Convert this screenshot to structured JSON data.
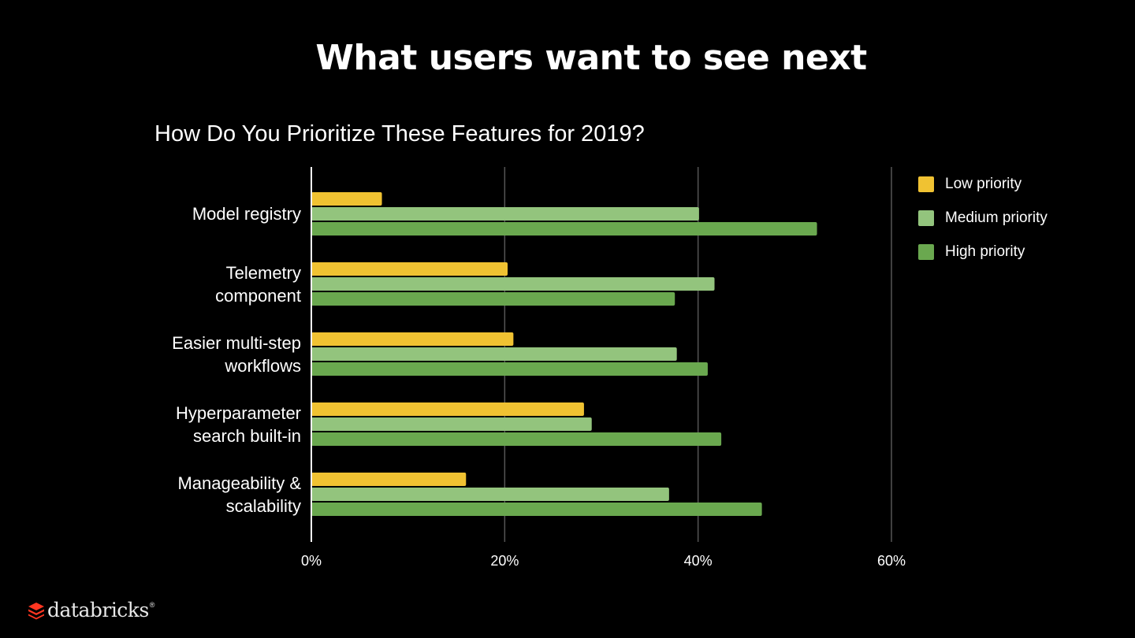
{
  "slide_title": "What users want to see next",
  "brand": {
    "name": "databricks",
    "mark": "®"
  },
  "colors": {
    "low": "#f0c232",
    "medium": "#93c47d",
    "high": "#6aa84f",
    "grid": "#555555",
    "axis": "#ffffff"
  },
  "chart_data": {
    "type": "bar",
    "orientation": "horizontal",
    "title": "How Do You Prioritize These Features for 2019?",
    "categories": [
      [
        "Model registry"
      ],
      [
        "Telemetry",
        "component"
      ],
      [
        "Easier multi-step",
        "workflows"
      ],
      [
        "Hyperparameter",
        "search built-in"
      ],
      [
        "Manageability &",
        "scalability"
      ]
    ],
    "series": [
      {
        "name": "Low priority",
        "color_key": "low",
        "values": [
          7.3,
          20.3,
          20.9,
          28.2,
          16.0
        ]
      },
      {
        "name": "Medium priority",
        "color_key": "medium",
        "values": [
          40.1,
          41.7,
          37.8,
          29.0,
          37.0
        ]
      },
      {
        "name": "High priority",
        "color_key": "high",
        "values": [
          52.3,
          37.6,
          41.0,
          42.4,
          46.6
        ]
      }
    ],
    "xlim": [
      0,
      60
    ],
    "xticks": [
      "0%",
      "20%",
      "40%",
      "60%"
    ],
    "xtick_values": [
      0,
      20,
      40,
      60
    ],
    "legend_position": "top-right",
    "grid": true
  }
}
